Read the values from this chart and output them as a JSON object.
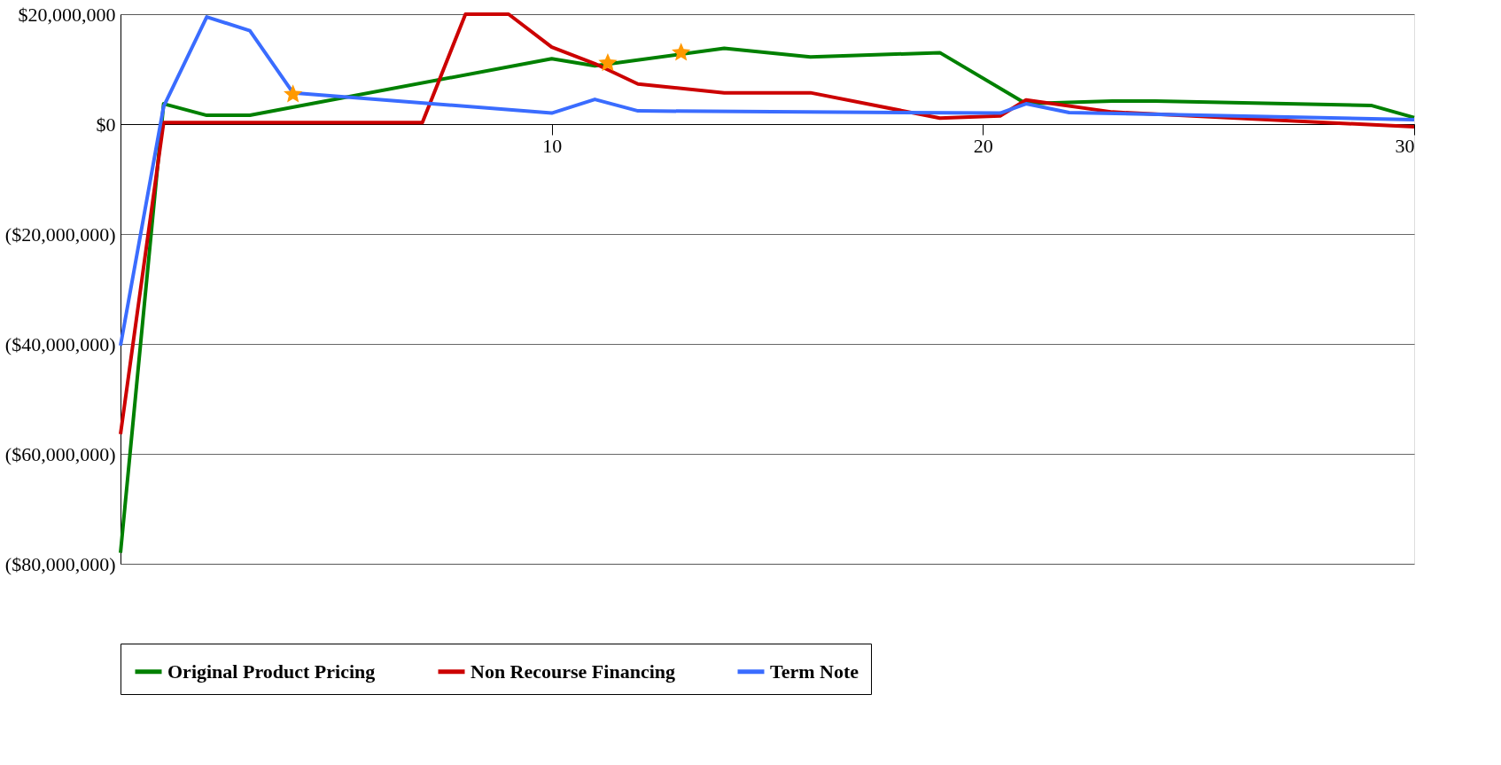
{
  "chart_data": {
    "type": "line",
    "xlim": [
      0,
      30
    ],
    "xticks": [
      10,
      20,
      30
    ],
    "ylim": [
      -80000000,
      20000000
    ],
    "yticks": [
      {
        "value": -80000000,
        "label": "($80,000,000)"
      },
      {
        "value": -60000000,
        "label": "($60,000,000)"
      },
      {
        "value": -40000000,
        "label": "($40,000,000)"
      },
      {
        "value": -20000000,
        "label": "($20,000,000)"
      },
      {
        "value": 0,
        "label": "$0"
      },
      {
        "value": 20000000,
        "label": "$20,000,000"
      }
    ],
    "grid": "y",
    "legend": "bottom",
    "line_style": "solid",
    "series": [
      {
        "name": "Original Product Pricing",
        "color": "#008000",
        "x": [
          0,
          1,
          2,
          3,
          10,
          11,
          14,
          16,
          19,
          21,
          23,
          24,
          29,
          30
        ],
        "values": [
          -78000000,
          3700000,
          1600000,
          1600000,
          11900000,
          10600000,
          13800000,
          12200000,
          13000000,
          3700000,
          4200000,
          4200000,
          3400000,
          1200000
        ]
      },
      {
        "name": "Non Recourse Financing",
        "color": "#cc0000",
        "x": [
          0,
          1,
          7,
          8,
          9,
          10,
          11,
          12,
          14,
          16,
          19,
          20.4,
          21,
          23,
          30
        ],
        "values": [
          -56400000,
          300000,
          300000,
          20000000,
          20000000,
          14000000,
          11000000,
          7300000,
          5700000,
          5700000,
          1100000,
          1500000,
          4400000,
          2200000,
          -500000
        ]
      },
      {
        "name": "Term Note",
        "color": "#3a6cff",
        "x": [
          0,
          1,
          2,
          3,
          4,
          10,
          11,
          12,
          20.4,
          21,
          22,
          30
        ],
        "values": [
          -40300000,
          3200000,
          19500000,
          17000000,
          5700000,
          2000000,
          4500000,
          2400000,
          2000000,
          3700000,
          2100000,
          800000
        ]
      },
      {
        "type": "scatter",
        "marker": "star",
        "color": "#ff9900",
        "x": [
          4,
          11.3,
          13
        ],
        "values": [
          5400000,
          11100000,
          13000000
        ]
      }
    ]
  }
}
